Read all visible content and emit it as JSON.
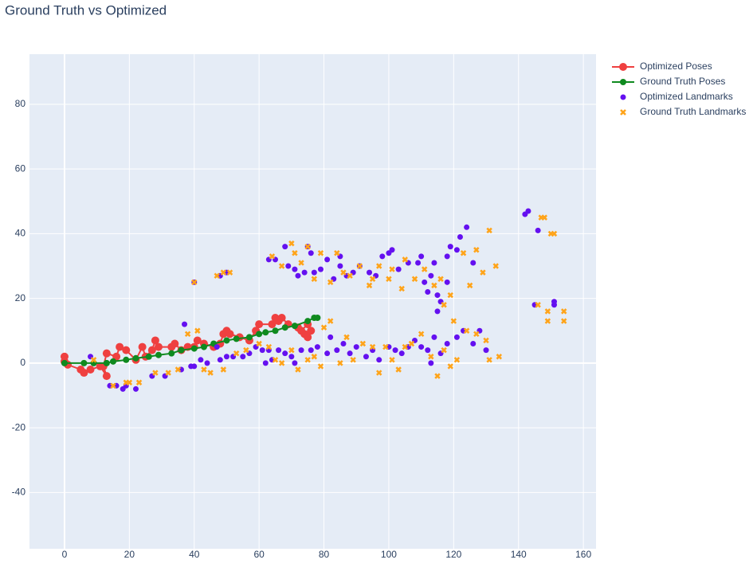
{
  "chart_data": {
    "type": "scatter",
    "title": "Ground Truth vs Optimized",
    "xlim": [
      -10.8,
      163.9
    ],
    "ylim": [
      -57.4,
      95.5
    ],
    "xticks": [
      0,
      20,
      40,
      60,
      80,
      100,
      120,
      140,
      160
    ],
    "yticks": [
      -40,
      -20,
      0,
      20,
      40,
      60,
      80
    ],
    "grid": true,
    "legend": "right",
    "series": [
      {
        "name": "Optimized Poses",
        "mode": "lines+markers",
        "color": "#ef4040",
        "x": [
          0,
          0,
          1,
          5,
          6,
          8,
          11,
          13,
          12,
          13,
          16,
          17,
          19,
          22,
          24,
          25,
          27,
          28,
          29,
          33,
          34,
          36,
          38,
          40,
          41,
          43,
          46,
          48,
          49,
          50,
          51,
          54,
          57,
          59,
          60,
          64,
          65,
          66,
          67,
          69,
          72,
          74,
          75,
          76,
          75,
          73
        ],
        "y": [
          0.5,
          2,
          -0.5,
          -2,
          -3,
          -2,
          -1,
          -4,
          -1,
          3,
          2,
          5,
          4,
          1,
          5,
          2,
          4,
          7,
          5,
          5,
          6,
          4,
          5,
          5,
          7,
          6,
          5,
          6,
          9,
          10,
          9,
          8,
          7,
          10,
          12,
          12,
          14,
          13,
          14,
          12,
          11,
          9,
          8,
          10,
          12,
          10
        ]
      },
      {
        "name": "Ground Truth Poses",
        "mode": "lines+markers",
        "color": "#0f8a1f",
        "x": [
          0,
          6,
          9,
          13,
          15,
          19,
          22,
          26,
          29,
          33,
          36,
          40,
          43,
          46,
          50,
          53,
          57,
          60,
          62,
          65,
          68,
          71,
          75,
          77,
          78
        ],
        "y": [
          0,
          0,
          0,
          0,
          0.5,
          1,
          1.5,
          2,
          2.5,
          3,
          4,
          4.5,
          5,
          6,
          7,
          7.5,
          8,
          9,
          9.5,
          10,
          11,
          11.5,
          13,
          14,
          14
        ]
      },
      {
        "name": "Optimized Landmarks",
        "mode": "markers",
        "symbol": "circle",
        "color": "#6410f0",
        "x": [
          8,
          14,
          16,
          18,
          19,
          22,
          27,
          31,
          36,
          37,
          39,
          40,
          42,
          44,
          47,
          48,
          50,
          52,
          55,
          57,
          59,
          61,
          62,
          63,
          64,
          66,
          68,
          70,
          71,
          73,
          76,
          78,
          81,
          82,
          84,
          86,
          88,
          90,
          93,
          95,
          97,
          100,
          102,
          104,
          106,
          108,
          110,
          112,
          113,
          114,
          116,
          118,
          121,
          123,
          126,
          128,
          130,
          40,
          48,
          50,
          63,
          65,
          68,
          69,
          71,
          72,
          74,
          75,
          76,
          77,
          79,
          81,
          83,
          85,
          85,
          87,
          89,
          91,
          94,
          96,
          98,
          100,
          101,
          103,
          106,
          109,
          110,
          111,
          113,
          114,
          115,
          115,
          116,
          118,
          119,
          121,
          122,
          124,
          126,
          142,
          143,
          146,
          145,
          151,
          151,
          118,
          112
        ],
        "y": [
          2,
          -7,
          -7,
          -8,
          -7,
          -8,
          -4,
          -4,
          -2,
          12,
          -1,
          -1,
          1,
          0,
          5,
          1,
          2,
          2,
          2,
          3,
          5,
          4,
          0,
          4,
          1,
          4,
          3,
          2,
          0,
          4,
          4,
          5,
          3,
          8,
          4,
          6,
          3,
          5,
          2,
          4,
          1,
          5,
          4,
          3,
          5,
          7,
          5,
          4,
          0,
          8,
          3,
          6,
          8,
          10,
          6,
          10,
          4,
          25,
          27,
          28,
          32,
          32,
          36,
          30,
          29,
          27,
          28,
          36,
          34,
          28,
          29,
          32,
          26,
          33,
          30,
          27,
          28,
          30,
          28,
          27,
          33,
          34,
          35,
          29,
          31,
          31,
          33,
          25,
          27,
          31,
          21,
          16,
          19,
          33,
          36,
          35,
          39,
          42,
          31,
          46,
          47,
          41,
          18,
          19,
          18,
          25,
          22
        ]
      },
      {
        "name": "Ground Truth Landmarks",
        "mode": "markers",
        "symbol": "x",
        "color": "#ffa41a",
        "x": [
          9,
          15,
          19,
          20,
          23,
          28,
          32,
          35,
          38,
          41,
          43,
          45,
          49,
          53,
          56,
          60,
          63,
          65,
          67,
          70,
          72,
          75,
          77,
          79,
          80,
          82,
          85,
          87,
          89,
          92,
          95,
          97,
          99,
          101,
          103,
          105,
          107,
          110,
          113,
          115,
          117,
          119,
          121,
          124,
          127,
          130,
          131,
          134,
          40,
          47,
          49,
          51,
          64,
          67,
          70,
          71,
          73,
          75,
          77,
          79,
          82,
          84,
          86,
          88,
          91,
          94,
          95,
          97,
          100,
          101,
          104,
          105,
          108,
          111,
          114,
          116,
          117,
          119,
          120,
          123,
          125,
          127,
          129,
          131,
          133,
          147,
          148,
          149,
          150,
          151,
          146,
          149,
          154,
          154
        ],
        "y": [
          1,
          -7,
          -6,
          -6,
          -6,
          -3,
          -3,
          -2,
          9,
          10,
          -2,
          -3,
          -2,
          3,
          4,
          6,
          5,
          1,
          0,
          4,
          -2,
          1,
          2,
          -1,
          11,
          13,
          0,
          8,
          1,
          6,
          5,
          -3,
          5,
          1,
          -2,
          5,
          6,
          9,
          2,
          -4,
          4,
          -1,
          1,
          10,
          9,
          7,
          1,
          2,
          25,
          27,
          28,
          28,
          33,
          30,
          37,
          34,
          31,
          36,
          26,
          34,
          25,
          34,
          28,
          27,
          30,
          24,
          26,
          30,
          26,
          29,
          23,
          32,
          26,
          29,
          24,
          26,
          18,
          21,
          13,
          34,
          24,
          35,
          28,
          41,
          30,
          45,
          45,
          13,
          40,
          40,
          18,
          16,
          16,
          13
        ]
      }
    ]
  }
}
